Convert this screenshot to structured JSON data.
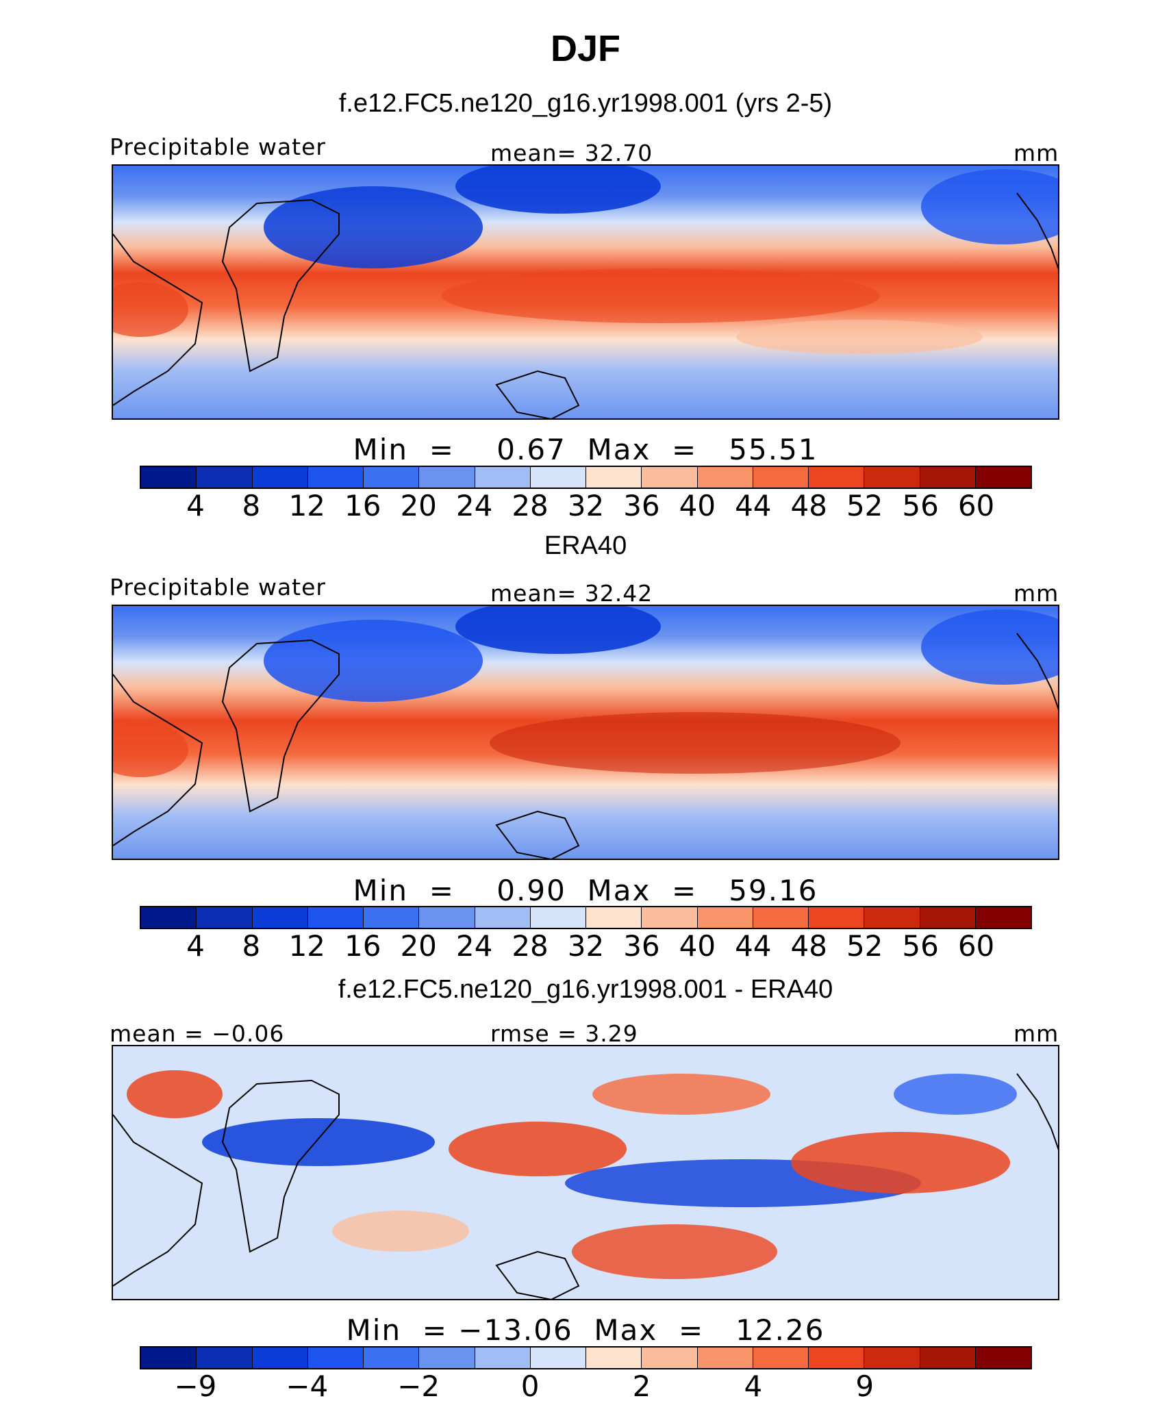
{
  "page_title": "DJF",
  "chart_data": [
    {
      "type": "heatmap",
      "title": "f.e12.FC5.ne120_g16.yr1998.001 (yrs 2-5)",
      "variable": "Precipitable water",
      "units": "mm",
      "stat_left": "",
      "stat_center": "mean=   32.70",
      "minmax": "Min  =    0.67  Max  =   55.51",
      "min": 0.67,
      "max": 55.51,
      "mean": 32.7,
      "colorbar_ticks": [
        "4",
        "8",
        "12",
        "16",
        "20",
        "24",
        "28",
        "32",
        "36",
        "40",
        "44",
        "48",
        "52",
        "56",
        "60"
      ],
      "colors": [
        "#001a8c",
        "#0a2fb4",
        "#0b3cd8",
        "#1e55f0",
        "#3b70f2",
        "#6b94f0",
        "#a2bdf5",
        "#d5e4fb",
        "#fde2cd",
        "#fbbd9c",
        "#f9936a",
        "#f56a3e",
        "#eb4620",
        "#cc2a0f",
        "#a51508",
        "#820000"
      ]
    },
    {
      "type": "heatmap",
      "title": "ERA40",
      "variable": "Precipitable water",
      "units": "mm",
      "stat_left": "",
      "stat_center": "mean=   32.42",
      "minmax": "Min  =    0.90  Max  =   59.16",
      "min": 0.9,
      "max": 59.16,
      "mean": 32.42,
      "colorbar_ticks": [
        "4",
        "8",
        "12",
        "16",
        "20",
        "24",
        "28",
        "32",
        "36",
        "40",
        "44",
        "48",
        "52",
        "56",
        "60"
      ],
      "colors": [
        "#001a8c",
        "#0a2fb4",
        "#0b3cd8",
        "#1e55f0",
        "#3b70f2",
        "#6b94f0",
        "#a2bdf5",
        "#d5e4fb",
        "#fde2cd",
        "#fbbd9c",
        "#f9936a",
        "#f56a3e",
        "#eb4620",
        "#cc2a0f",
        "#a51508",
        "#820000"
      ]
    },
    {
      "type": "heatmap",
      "title": "f.e12.FC5.ne120_g16.yr1998.001 - ERA40",
      "variable": "",
      "units": "mm",
      "stat_left": "mean =   −0.06",
      "stat_center": "rmse =    3.29",
      "minmax": "Min  = −13.06  Max  =   12.26",
      "min": -13.06,
      "max": 12.26,
      "mean": -0.06,
      "rmse": 3.29,
      "colorbar_ticks": [
        "−9",
        "",
        "−4",
        "",
        "−2",
        "",
        "0",
        "",
        "2",
        "",
        "4",
        "",
        "9",
        ""
      ],
      "colors": [
        "#001a8c",
        "#0a2fb4",
        "#0b3cd8",
        "#1e55f0",
        "#3b70f2",
        "#6b94f0",
        "#a2bdf5",
        "#d5e4fb",
        "#fde2cd",
        "#fbbd9c",
        "#f9936a",
        "#f56a3e",
        "#eb4620",
        "#cc2a0f",
        "#a51508",
        "#820000"
      ]
    }
  ]
}
